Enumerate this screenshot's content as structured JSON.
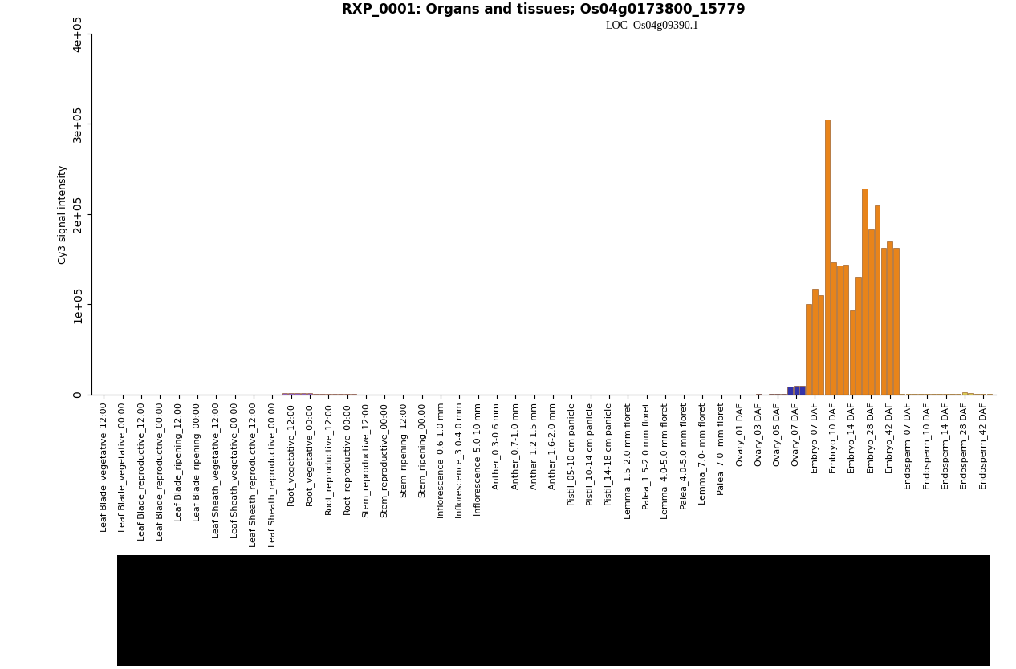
{
  "chart_data": {
    "type": "bar",
    "title": "RXP_0001: Organs and tissues; Os04g0173800_15779",
    "subtitle": "LOC_Os04g09390.1",
    "y_label": "Cy3 signal intensity",
    "categories": [
      null,
      "Leaf Blade_vegetative_12:00",
      null,
      null,
      "Leaf Blade_vegetative_00:00",
      null,
      null,
      "Leaf Blade_reproductive_12:00",
      null,
      null,
      "Leaf Blade_reproductive_00:00",
      null,
      null,
      "Leaf Blade_ripening_12:00",
      null,
      null,
      "Leaf Blade_ripening_00:00",
      null,
      null,
      "Leaf Sheath_vegetative_12:00",
      null,
      null,
      "Leaf Sheath_vegetative_00:00",
      null,
      null,
      "Leaf Sheath_reproductive_12:00",
      null,
      null,
      "Leaf Sheath_reproductive_00:00",
      null,
      null,
      "Root_vegetative_12:00",
      null,
      null,
      "Root_vegetative_00:00",
      null,
      null,
      "Root_reproductive_12:00",
      null,
      null,
      "Root_reproductive_00:00",
      null,
      null,
      "Stem_reproductive_12:00",
      null,
      null,
      "Stem_reproductive_00:00",
      null,
      null,
      "Stem_ripening_12:00",
      null,
      null,
      "Stem_ripening_00:00",
      null,
      null,
      "Inflorescence_0.6-1.0 mm",
      null,
      null,
      "Inflorescence_3.0-4.0 mm",
      null,
      null,
      "Inflorescence_5.0-10 mm",
      null,
      null,
      "Anther_0.3-0.6 mm",
      null,
      null,
      "Anther_0.7-1.0 mm",
      null,
      null,
      "Anther_1.2-1.5 mm",
      null,
      null,
      "Anther_1.6-2.0 mm",
      null,
      null,
      "Pistil_05-10 cm panicle",
      null,
      null,
      "Pistil_10-14 cm panicle",
      null,
      null,
      "Pistil_14-18 cm panicle",
      null,
      null,
      "Lemma_1.5-2.0 mm floret",
      null,
      null,
      "Palea_1.5-2.0 mm floret",
      null,
      null,
      "Lemma_4.0-5.0 mm floret",
      null,
      null,
      "Palea_4.0-5.0 mm floret",
      null,
      null,
      "Lemma_7.0- mm floret",
      null,
      null,
      "Palea_7.0- mm floret",
      null,
      null,
      "Ovary_01 DAF",
      null,
      null,
      "Ovary_03 DAF",
      null,
      null,
      "Ovary_05 DAF",
      null,
      null,
      "Ovary_07 DAF",
      null,
      null,
      "Embryo_07 DAF",
      null,
      null,
      "Embryo_10 DAF",
      null,
      null,
      "Embryo_14 DAF",
      null,
      null,
      "Embryo_28 DAF",
      null,
      null,
      "Embryo_42 DAF",
      null,
      null,
      "Endosperm_07 DAF",
      null,
      null,
      "Endosperm_10 DAF",
      null,
      null,
      "Endosperm_14 DAF",
      null,
      null,
      "Endosperm_28 DAF",
      null,
      null,
      "Endosperm_42 DAF",
      null
    ],
    "values": [
      300,
      300,
      300,
      300,
      300,
      300,
      300,
      300,
      300,
      300,
      300,
      300,
      300,
      300,
      300,
      300,
      300,
      300,
      300,
      300,
      300,
      300,
      300,
      300,
      300,
      300,
      300,
      300,
      300,
      300,
      1500,
      2000,
      1800,
      1800,
      1500,
      1200,
      500,
      500,
      500,
      500,
      500,
      500,
      300,
      300,
      300,
      300,
      300,
      300,
      300,
      300,
      300,
      300,
      300,
      300,
      400,
      400,
      400,
      400,
      400,
      400,
      400,
      400,
      400,
      200,
      200,
      200,
      200,
      200,
      200,
      200,
      200,
      200,
      200,
      200,
      200,
      400,
      400,
      400,
      400,
      400,
      400,
      400,
      400,
      400,
      300,
      300,
      300,
      300,
      300,
      300,
      300,
      300,
      300,
      300,
      300,
      300,
      300,
      300,
      300,
      300,
      300,
      300,
      300,
      300,
      300,
      400,
      500,
      400,
      800,
      1000,
      900,
      9000,
      10000,
      10000,
      100000,
      117000,
      110000,
      305000,
      147000,
      143000,
      144000,
      93000,
      131000,
      228000,
      183000,
      210000,
      163000,
      170000,
      163000,
      500,
      500,
      500,
      500,
      500,
      500,
      500,
      500,
      500,
      1000,
      2500,
      1500,
      600,
      600,
      600
    ],
    "colors": [
      "#33a02c",
      "#33a02c",
      "#33a02c",
      "#33a02c",
      "#33a02c",
      "#33a02c",
      "#33a02c",
      "#33a02c",
      "#33a02c",
      "#33a02c",
      "#33a02c",
      "#33a02c",
      "#33a02c",
      "#33a02c",
      "#33a02c",
      "#33a02c",
      "#33a02c",
      "#33a02c",
      "#b2df8a",
      "#b2df8a",
      "#b2df8a",
      "#b2df8a",
      "#b2df8a",
      "#b2df8a",
      "#b2df8a",
      "#b2df8a",
      "#b2df8a",
      "#b2df8a",
      "#b2df8a",
      "#b2df8a",
      "#9966cc",
      "#9966cc",
      "#9966cc",
      "#9966cc",
      "#9966cc",
      "#9966cc",
      "#9966cc",
      "#9966cc",
      "#9966cc",
      "#9966cc",
      "#9966cc",
      "#9966cc",
      "#cc9933",
      "#cc9933",
      "#cc9933",
      "#cc9933",
      "#cc9933",
      "#cc9933",
      "#cc9933",
      "#cc9933",
      "#cc9933",
      "#cc9933",
      "#cc9933",
      "#cc9933",
      "#cccc66",
      "#cccc66",
      "#cccc66",
      "#cccc66",
      "#cccc66",
      "#cccc66",
      "#cccc66",
      "#cccc66",
      "#cccc66",
      "#e6d23c",
      "#e6d23c",
      "#e6d23c",
      "#e6d23c",
      "#e6d23c",
      "#e6d23c",
      "#e6d23c",
      "#e6d23c",
      "#e6d23c",
      "#e6d23c",
      "#e6d23c",
      "#e6d23c",
      "#66aa66",
      "#66aa66",
      "#66aa66",
      "#66aa66",
      "#66aa66",
      "#66aa66",
      "#66aa66",
      "#66aa66",
      "#66aa66",
      "#99cc33",
      "#99cc33",
      "#99cc33",
      "#99cc33",
      "#99cc33",
      "#99cc33",
      "#99cc33",
      "#99cc33",
      "#99cc33",
      "#99cc33",
      "#99cc33",
      "#99cc33",
      "#99cc33",
      "#99cc33",
      "#99cc33",
      "#99cc33",
      "#99cc33",
      "#99cc33",
      "#3333aa",
      "#3333aa",
      "#3333aa",
      "#3333aa",
      "#3333aa",
      "#3333aa",
      "#3333aa",
      "#3333aa",
      "#3333aa",
      "#3333aa",
      "#3333aa",
      "#3333aa",
      "#e8841a",
      "#e8841a",
      "#e8841a",
      "#e8841a",
      "#e8841a",
      "#e8841a",
      "#e8841a",
      "#e8841a",
      "#e8841a",
      "#e8841a",
      "#e8841a",
      "#e8841a",
      "#e8841a",
      "#e8841a",
      "#e8841a",
      "#ddcc55",
      "#ddcc55",
      "#ddcc55",
      "#ddcc55",
      "#ddcc55",
      "#ddcc55",
      "#ddcc55",
      "#ddcc55",
      "#ddcc55",
      "#ddcc55",
      "#ddcc55",
      "#ddcc55",
      "#ddcc55",
      "#ddcc55",
      "#ddcc55"
    ],
    "ylim": [
      0,
      400000
    ],
    "yticks": [
      0,
      {
        "value": 100000,
        "label": "1e+05"
      },
      {
        "value": 200000,
        "label": "2e+05"
      },
      {
        "value": 300000,
        "label": "3e+05"
      },
      {
        "value": 400000,
        "label": "4e+05"
      }
    ],
    "grid": false
  }
}
